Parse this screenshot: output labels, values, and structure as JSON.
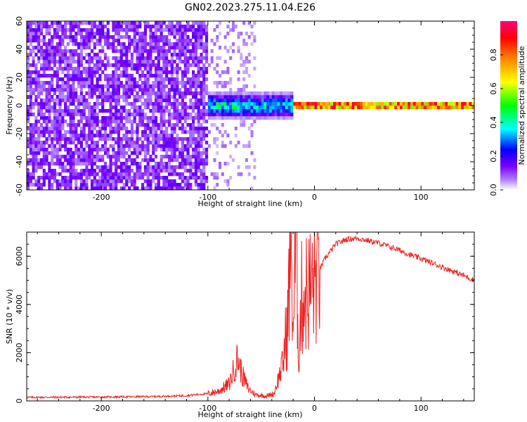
{
  "title": "GN02.2023.275.11.04.E26",
  "chart_data": [
    {
      "type": "heatmap",
      "xlabel": "Height of straight line (km)",
      "ylabel": "Frequency (Hz)",
      "xlim": [
        -270,
        150
      ],
      "ylim": [
        -60,
        60
      ],
      "x_ticks": [
        -200,
        -100,
        0,
        100
      ],
      "y_ticks": [
        -60,
        -40,
        -20,
        0,
        20,
        40,
        60
      ],
      "x_tick_labels": [
        "-200",
        "-100",
        "0",
        "100"
      ],
      "y_tick_labels": [
        "-60",
        "-40",
        "-20",
        "0",
        "20",
        "40",
        "60"
      ],
      "colorbar": {
        "label": "Normalized spectral amplitude",
        "range": [
          0,
          1
        ],
        "ticks": [
          0.0,
          0.2,
          0.4,
          0.6,
          0.8
        ],
        "tick_labels": [
          "0.0",
          "0.2",
          "0.4",
          "0.6",
          "0.8"
        ],
        "colormap": [
          "#ffffff",
          "#7a00ff",
          "#0000ff",
          "#00ffff",
          "#00ff00",
          "#ffff00",
          "#ff8000",
          "#ff0000",
          "#ff0080"
        ]
      },
      "regions": [
        {
          "x_range": [
            -270,
            -100
          ],
          "freq_range": [
            -60,
            60
          ],
          "amplitude": 0.1,
          "pattern": "broadband noise"
        },
        {
          "x_range": [
            -100,
            -20
          ],
          "freq_range": [
            -10,
            10
          ],
          "amplitude": 0.35,
          "pattern": "narrowing band near 0 Hz"
        },
        {
          "x_range": [
            -20,
            150
          ],
          "freq_range": [
            -2,
            2
          ],
          "amplitude": 0.75,
          "pattern": "narrow line at 0 Hz"
        }
      ]
    },
    {
      "type": "line",
      "xlabel": "Height of straight line (km)",
      "ylabel": "SNR (10 * v/v)",
      "xlim": [
        -270,
        150
      ],
      "ylim": [
        0,
        7000
      ],
      "x_ticks": [
        -200,
        -100,
        0,
        100
      ],
      "y_ticks": [
        0,
        2000,
        4000,
        6000
      ],
      "x_tick_labels": [
        "-200",
        "-100",
        "0",
        "100"
      ],
      "y_tick_labels": [
        "0",
        "2000",
        "4000",
        "6000"
      ],
      "series": [
        {
          "color": "#ee2222",
          "x": [
            -270,
            -250,
            -200,
            -150,
            -120,
            -100,
            -90,
            -80,
            -72,
            -68,
            -62,
            -55,
            -45,
            -38,
            -30,
            -25,
            -22,
            -20,
            -17,
            -15,
            -12,
            -8,
            -5,
            0,
            10,
            20,
            30,
            40,
            50,
            60,
            80,
            90,
            100,
            120,
            140,
            150
          ],
          "y": [
            150,
            150,
            160,
            180,
            220,
            300,
            400,
            700,
            1800,
            1100,
            500,
            250,
            200,
            300,
            1500,
            3300,
            6800,
            3000,
            7000,
            2000,
            4200,
            4500,
            4600,
            5000,
            5900,
            6500,
            6700,
            6750,
            6650,
            6550,
            6250,
            6050,
            5900,
            5550,
            5200,
            5000
          ]
        }
      ]
    }
  ]
}
